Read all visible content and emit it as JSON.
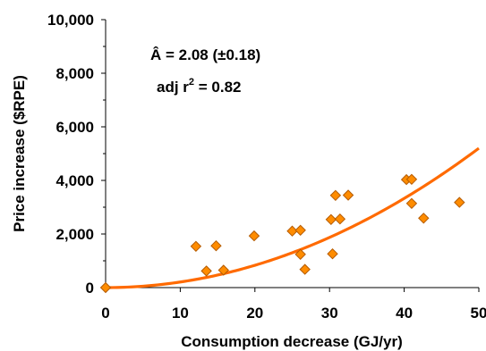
{
  "chart_data": {
    "type": "scatter",
    "xlabel": "Consumption decrease (GJ/yr)",
    "ylabel": "Price increase ($RPE)",
    "xlim": [
      0,
      50
    ],
    "ylim": [
      0,
      10000
    ],
    "x_ticks": [
      0,
      10,
      20,
      30,
      40,
      50
    ],
    "x_tick_labels": [
      "0",
      "10",
      "20",
      "30",
      "40",
      "50"
    ],
    "y_ticks": [
      0,
      2000,
      4000,
      6000,
      8000,
      10000
    ],
    "y_tick_labels": [
      "0",
      "2,000",
      "4,000",
      "6,000",
      "8,000",
      "10,000"
    ],
    "grid": false,
    "legend": "none",
    "annotations": {
      "line1": "Â = 2.08 (±0.18)",
      "line2_base": "adj r",
      "line2_sup": "2",
      "line2_rest": " = 0.82"
    },
    "series": [
      {
        "kind": "points",
        "marker": "diamond",
        "color": "#FF8C00",
        "edge_color": "#B35A00",
        "points": [
          [
            0,
            0
          ],
          [
            12.1,
            1540
          ],
          [
            13.5,
            620
          ],
          [
            14.8,
            1560
          ],
          [
            15.8,
            650
          ],
          [
            19.9,
            1930
          ],
          [
            25.0,
            2110
          ],
          [
            26.1,
            2140
          ],
          [
            26.1,
            1240
          ],
          [
            26.7,
            680
          ],
          [
            30.2,
            2540
          ],
          [
            30.4,
            1260
          ],
          [
            30.8,
            3440
          ],
          [
            31.4,
            2560
          ],
          [
            32.5,
            3450
          ],
          [
            40.3,
            4030
          ],
          [
            41.0,
            4040
          ],
          [
            41.0,
            3140
          ],
          [
            42.6,
            2590
          ],
          [
            47.4,
            3180
          ]
        ]
      },
      {
        "kind": "fit",
        "formula": "y = 2.08 * x^2",
        "coefficient": 2.08,
        "exponent": 2,
        "color": "#FF6A00"
      }
    ]
  }
}
